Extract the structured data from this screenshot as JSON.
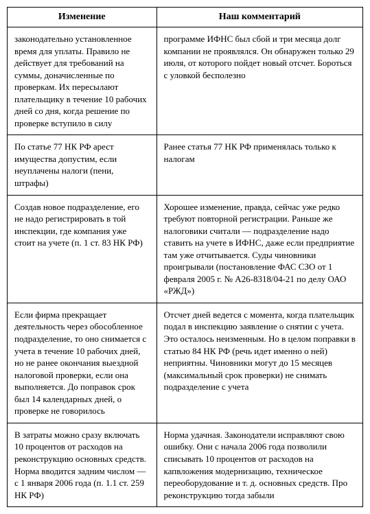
{
  "table": {
    "headers": {
      "left": "Изменение",
      "right": "Наш комментарий"
    },
    "rows": [
      {
        "change": "законодательно установленное время для уплаты. Правило не действует для требований на суммы, доначисленные по проверкам. Их пересылают плательщику в течение 10 рабочих дней со дня, когда решение по проверке вступило в силу",
        "comment": "программе ИФНС был сбой и три месяца долг компании не проявлялся. Он обнаружен только 29 июля, от которого пойдет новый отсчет. Бороться с уловкой бесполезно"
      },
      {
        "change": "По статье 77 НК РФ арест имущества допустим, если неуплачены налоги (пени, штрафы)",
        "comment": "Ранее статья 77 НК РФ применялась только к налогам"
      },
      {
        "change": "Создав новое подразделение, его не надо регистрировать в той инспекции, где компания уже стоит на учете (п. 1 ст. 83 НК РФ)",
        "comment": "Хорошее изменение, правда, сейчас уже редко требуют повторной регистрации. Раньше же налоговики считали — подразделение надо ставить на учете в ИФНС, даже если предприятие там уже отчитывается. Суды чиновники проигрывали (постановление ФАС СЗО от 1 февраля 2005 г. № А26-8318/04-21 по делу ОАО «РЖД»)"
      },
      {
        "change": "Если фирма прекращает деятельность через обособленное подразделение, то оно снимается с учета в течение 10 рабочих дней, но не ранее окончания выездной налоговой проверки, если она выполняется. До поправок срок был 14 календарных дней, о проверке не говорилось",
        "comment": "Отсчет дней ведется с момента, когда плательщик подал в инспекцию заявление о снятии с учета. Это осталось неизменным. Но в целом поправки в статью 84 НК РФ (речь идет именно о ней) неприятны. Чиновники могут до 15 месяцев (максимальный срок проверки) не снимать подразделение с учета"
      },
      {
        "change": "В затраты можно сразу включать 10 процентов от расходов на реконструкцию основных средств. Норма вводится задним числом — с 1 января 2006 года (п. 1.1 ст. 259 НК РФ)",
        "comment": "Норма удачная. Законодатели исправляют свою ошибку. Они с начала 2006 года позволили списывать 10 процентов от расходов на капвложения модернизацию, техническое переоборудование и т. д. основных средств. Про реконструкцию тогда забыли"
      }
    ]
  }
}
